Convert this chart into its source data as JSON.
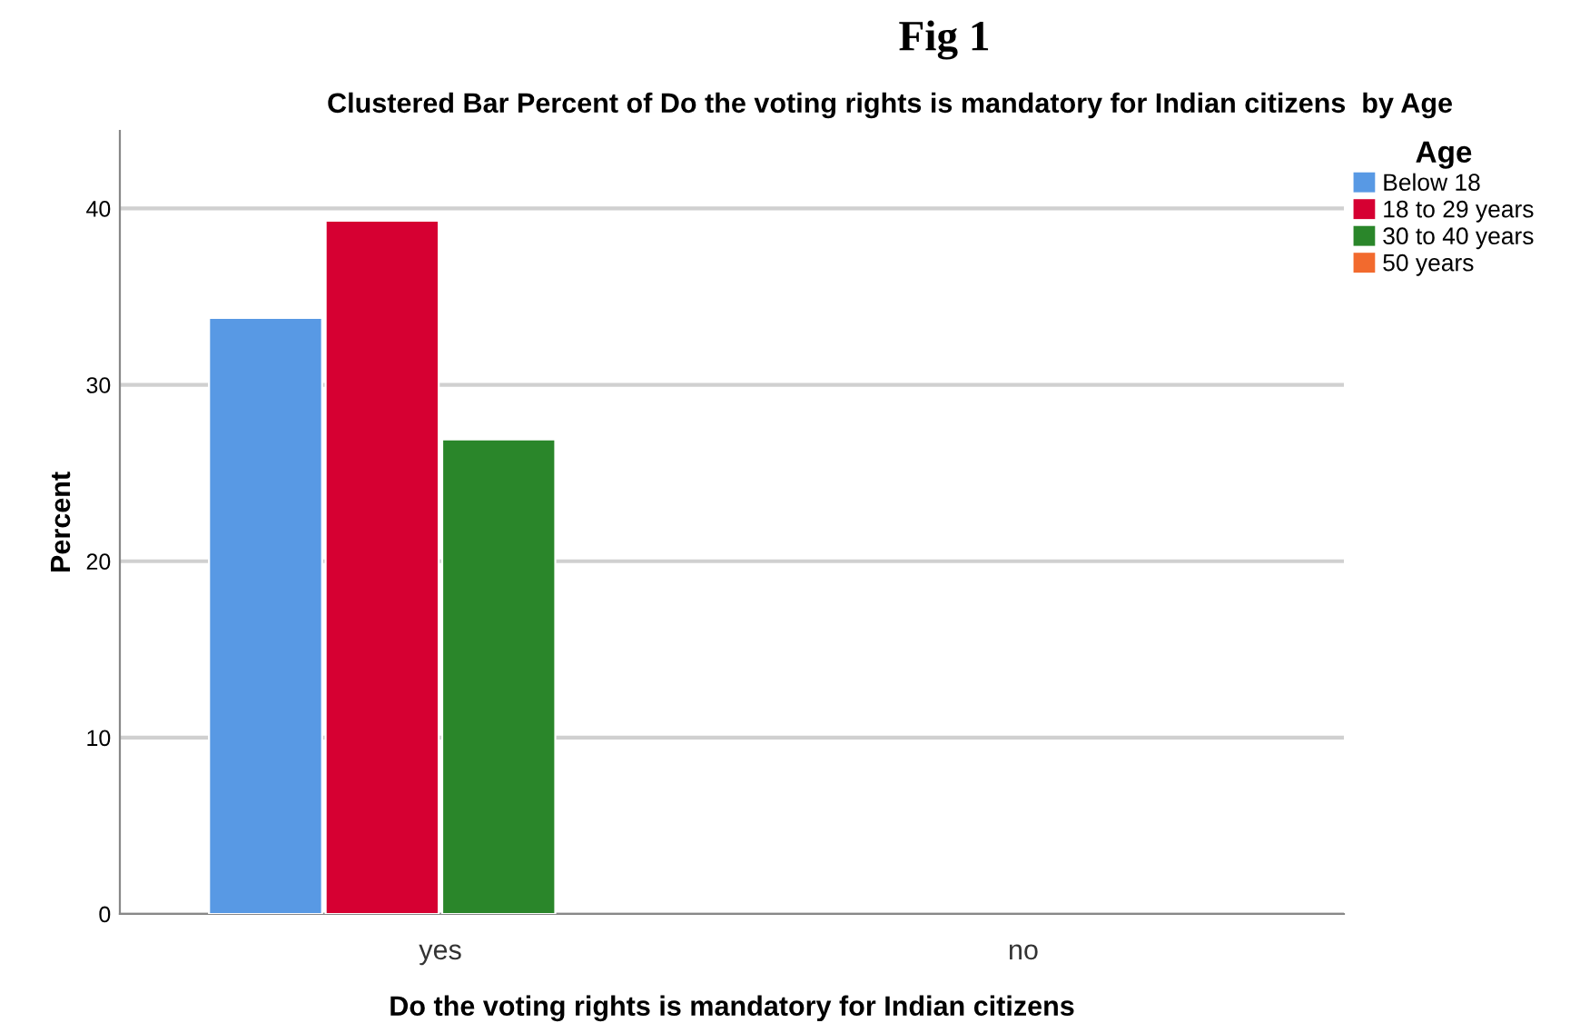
{
  "chart_data": {
    "type": "bar",
    "title": "Fig 1",
    "subtitle": "Clustered Bar Percent of Do the voting rights is mandatory for Indian citizens  by Age",
    "xlabel": "Do the voting rights is mandatory for Indian citizens",
    "ylabel": "Percent",
    "legend_title": "Age",
    "categories": [
      "yes",
      "no"
    ],
    "series": [
      {
        "name": "Below 18",
        "color": "#5899e4",
        "values": [
          33.8,
          null
        ]
      },
      {
        "name": "18 to 29 years",
        "color": "#d60032",
        "values": [
          39.3,
          null
        ]
      },
      {
        "name": "30 to 40 years",
        "color": "#2a862a",
        "values": [
          26.9,
          null
        ]
      },
      {
        "name": "50 years",
        "color": "#f26a2e",
        "values": [
          null,
          null
        ]
      }
    ],
    "ylim": [
      0,
      44.4
    ],
    "yticks": [
      0,
      10,
      20,
      30,
      40
    ],
    "grid": "y",
    "legend": "top right"
  }
}
